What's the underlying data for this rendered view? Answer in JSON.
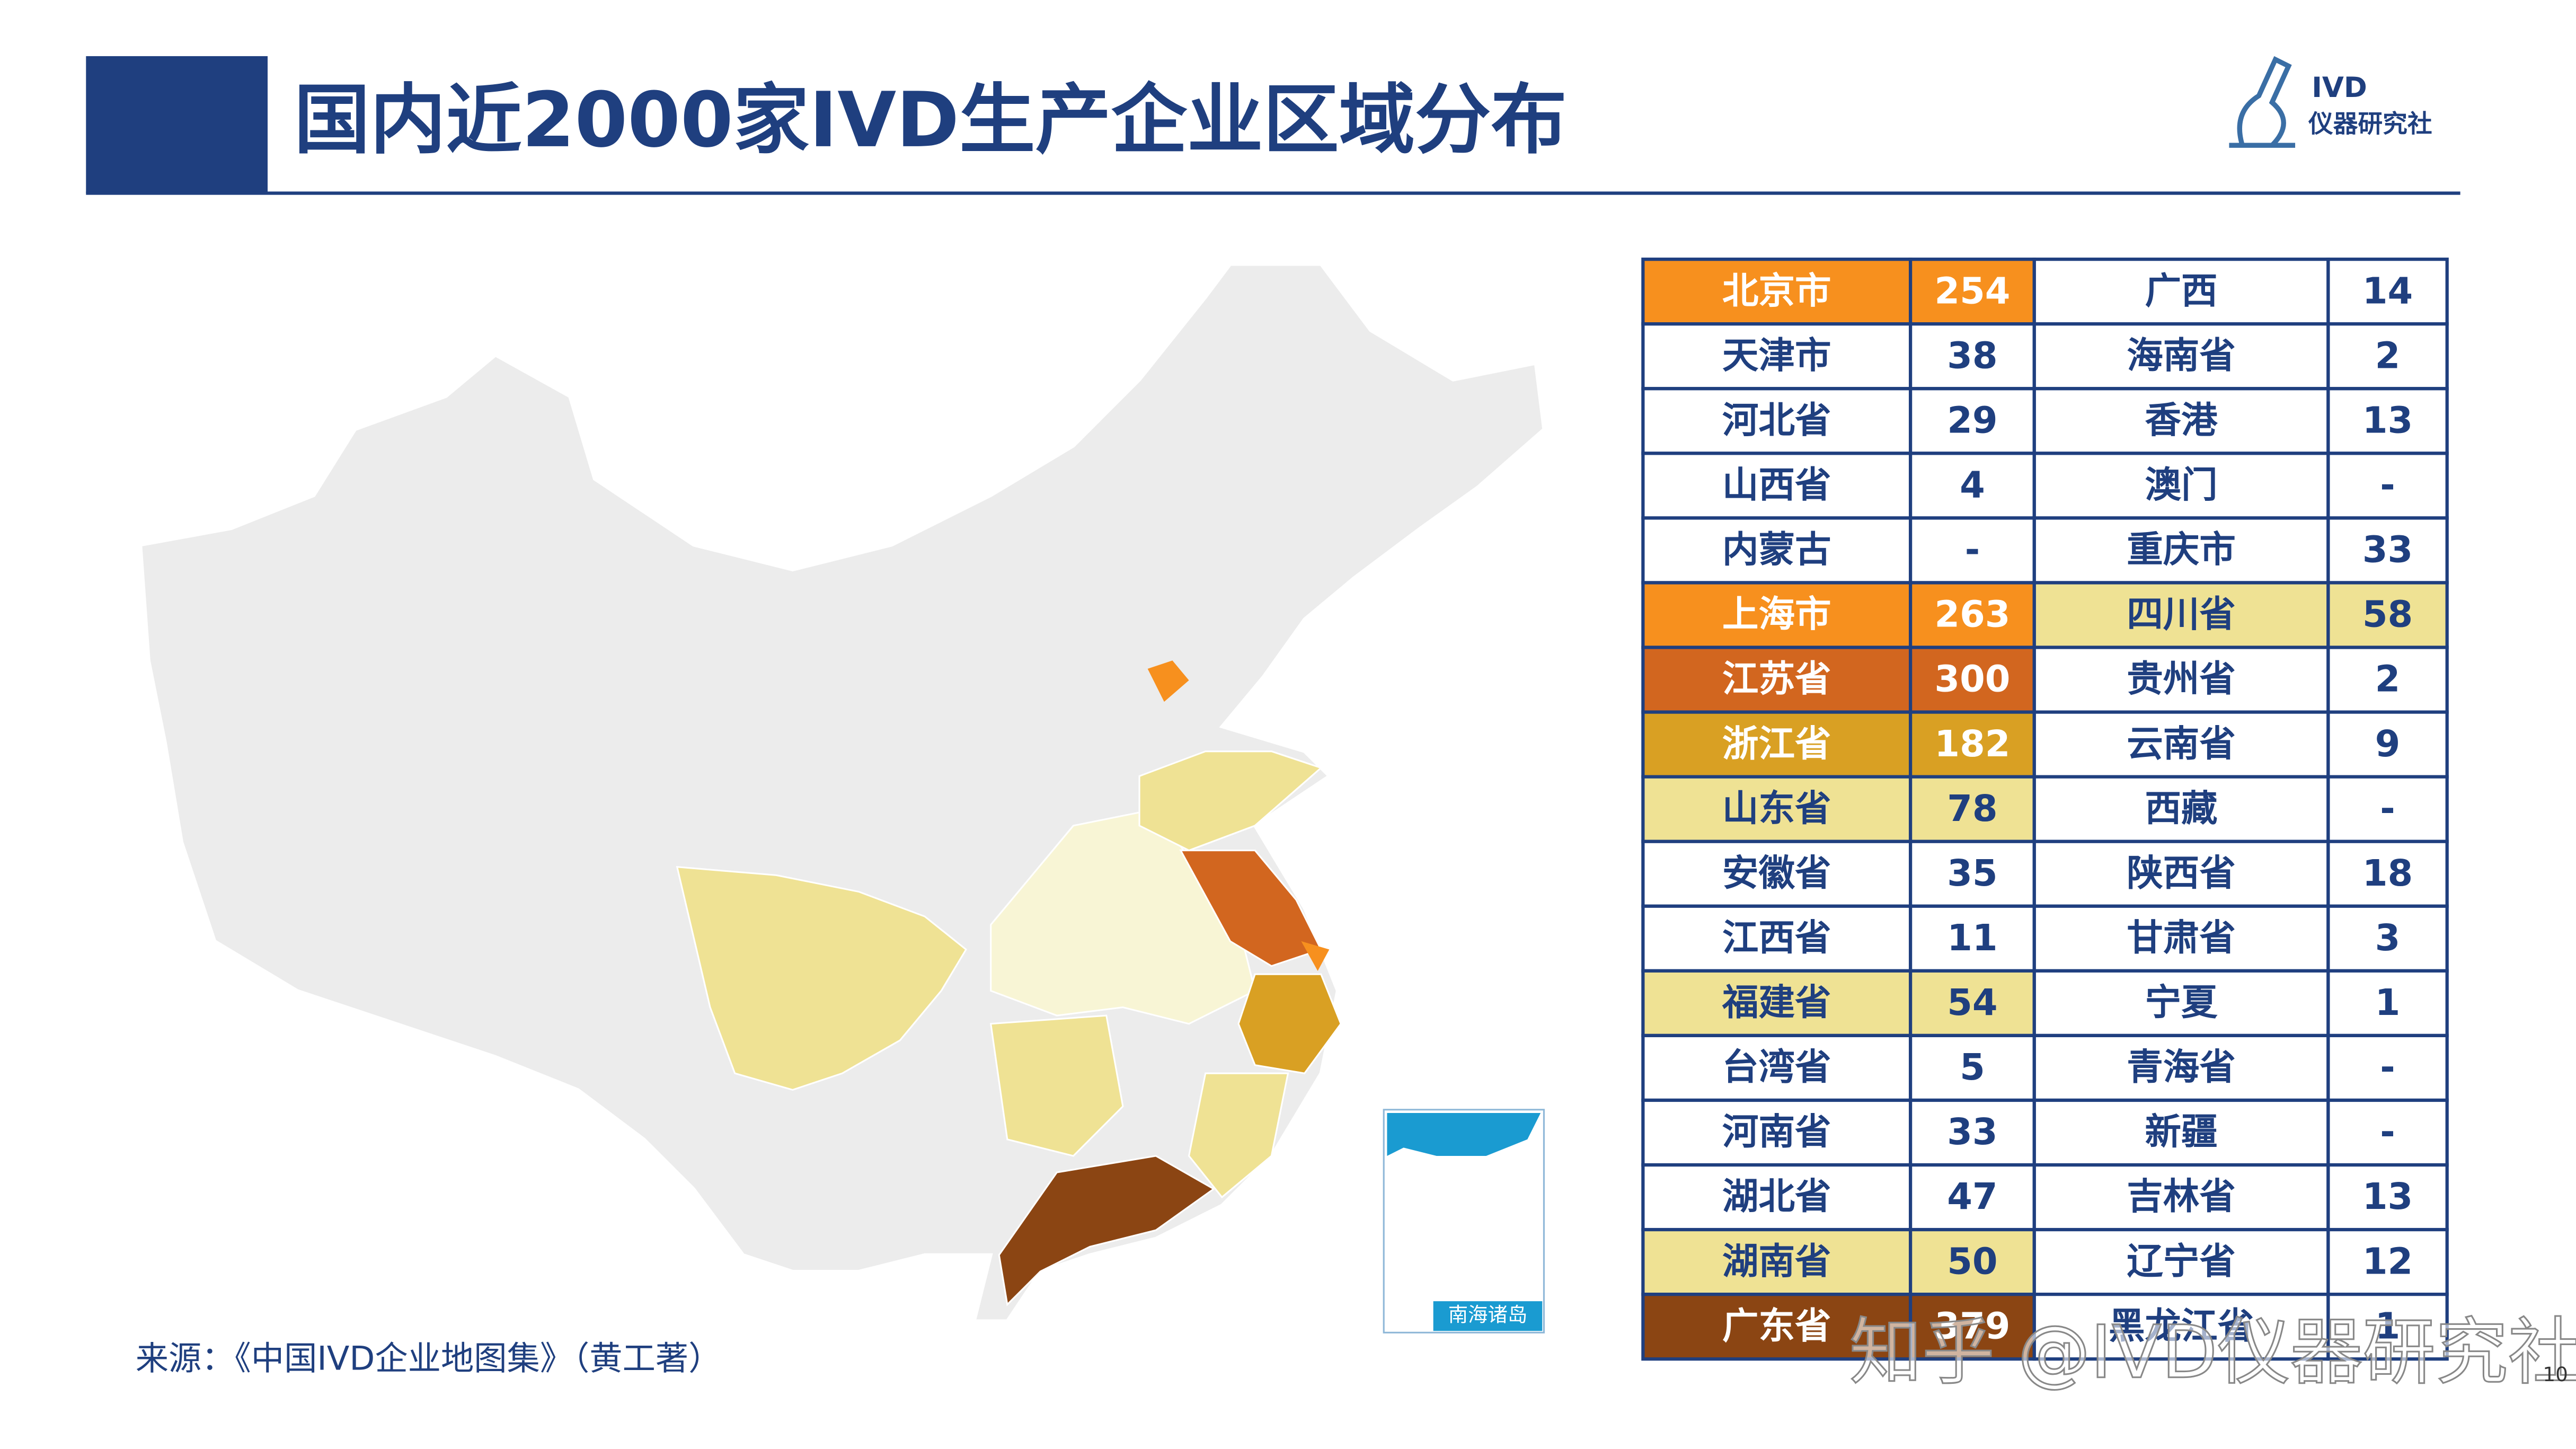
{
  "header": {
    "title": "国内近2000家IVD生产企业区域分布",
    "logo_top": "IVD",
    "logo_bottom": "仪器研究社"
  },
  "table": {
    "rows": [
      [
        "北京市",
        254,
        "广西",
        14
      ],
      [
        "天津市",
        38,
        "海南省",
        2
      ],
      [
        "河北省",
        29,
        "香港",
        13
      ],
      [
        "山西省",
        4,
        "澳门",
        "-"
      ],
      [
        "内蒙古",
        "-",
        "重庆市",
        33
      ],
      [
        "上海市",
        263,
        "四川省",
        58
      ],
      [
        "江苏省",
        300,
        "贵州省",
        2
      ],
      [
        "浙江省",
        182,
        "云南省",
        9
      ],
      [
        "山东省",
        78,
        "西藏",
        "-"
      ],
      [
        "安徽省",
        35,
        "陕西省",
        18
      ],
      [
        "江西省",
        11,
        "甘肃省",
        3
      ],
      [
        "福建省",
        54,
        "宁夏",
        1
      ],
      [
        "台湾省",
        5,
        "青海省",
        "-"
      ],
      [
        "河南省",
        33,
        "新疆",
        "-"
      ],
      [
        "湖北省",
        47,
        "吉林省",
        13
      ],
      [
        "湖南省",
        50,
        "辽宁省",
        12
      ],
      [
        "广东省",
        379,
        "黑龙江省",
        1
      ]
    ],
    "fills": [
      [
        "#f7901e",
        null
      ],
      [
        null,
        null
      ],
      [
        null,
        null
      ],
      [
        null,
        null
      ],
      [
        null,
        null
      ],
      [
        "#f7901e",
        "#efe294"
      ],
      [
        "#d2661f",
        null
      ],
      [
        "#d9a023",
        null
      ],
      [
        "#efe294",
        null
      ],
      [
        null,
        null
      ],
      [
        null,
        null
      ],
      [
        "#efe294",
        null
      ],
      [
        null,
        null
      ],
      [
        null,
        null
      ],
      [
        null,
        null
      ],
      [
        "#efe294",
        null
      ],
      [
        "#8b4513",
        null
      ]
    ]
  },
  "map": {
    "inset_label": "南海诸岛"
  },
  "footer": {
    "source": "来源：《中国IVD企业地图集》（黄工著）",
    "page": "10",
    "watermark": "知乎 @IVD仪器研究社"
  }
}
